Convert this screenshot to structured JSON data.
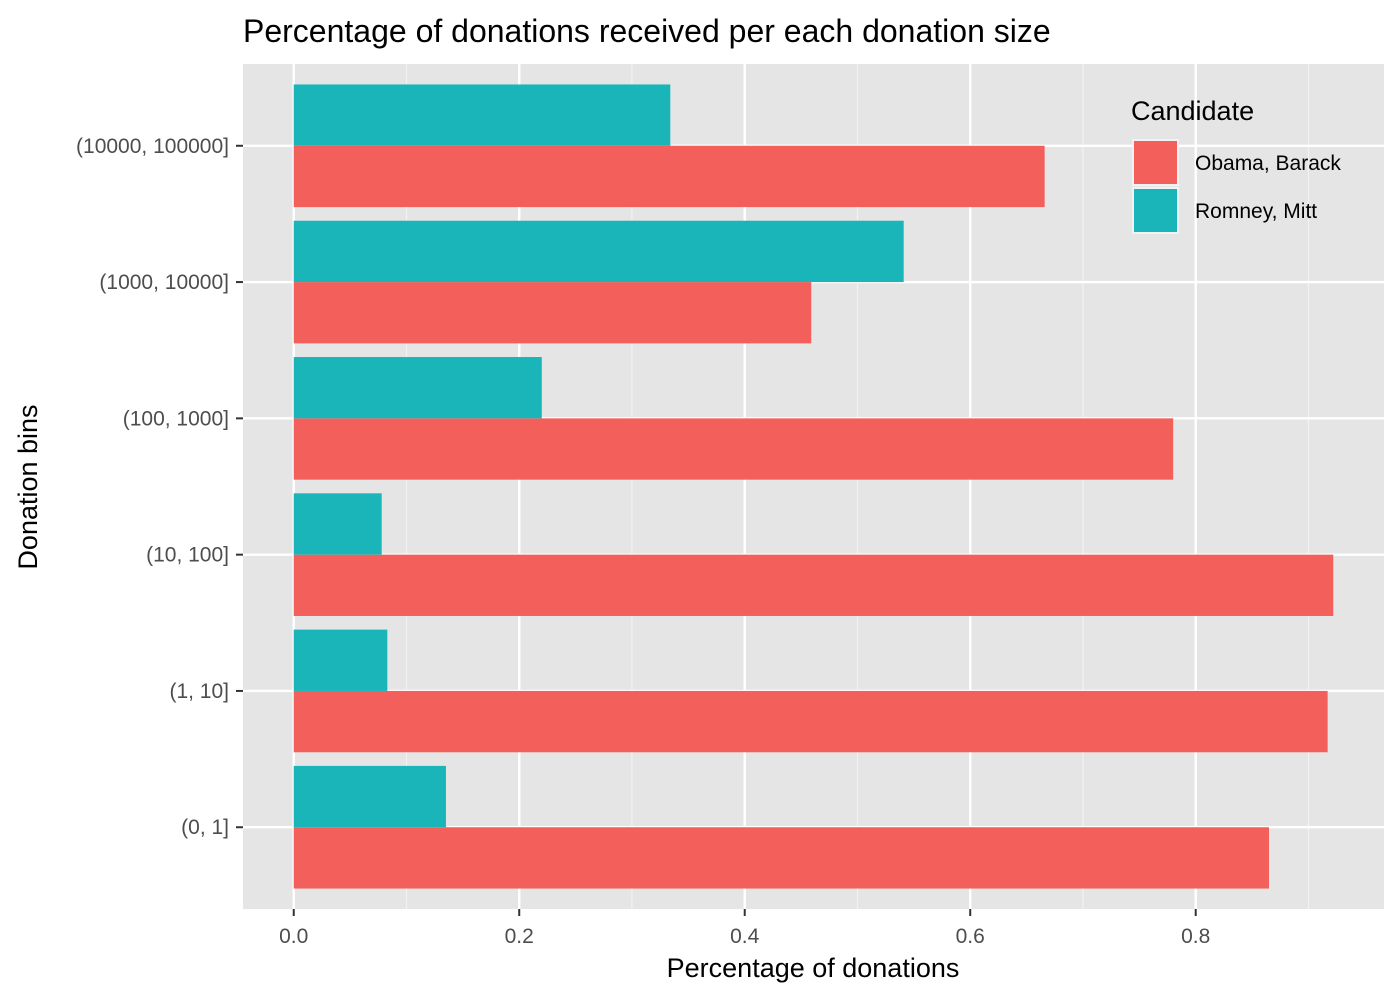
{
  "chart_data": {
    "type": "bar",
    "orientation": "horizontal",
    "title": "Percentage of donations received per each donation size",
    "xlabel": "Percentage of donations",
    "ylabel": "Donation bins",
    "categories": [
      "(0, 1]",
      "(1, 10]",
      "(10, 100]",
      "(100, 1000]",
      "(1000, 10000]",
      "(10000, 100000]"
    ],
    "series": [
      {
        "name": "Obama, Barack",
        "color": "#F3605C",
        "values": [
          0.865,
          0.917,
          0.922,
          0.78,
          0.459,
          0.666
        ]
      },
      {
        "name": "Romney, Mitt",
        "color": "#1AB5B8",
        "values": [
          0.135,
          0.083,
          0.078,
          0.22,
          0.541,
          0.334
        ]
      }
    ],
    "xlim": [
      -0.045,
      0.967
    ],
    "xticks": [
      0.0,
      0.2,
      0.4,
      0.6,
      0.8
    ],
    "xtick_labels": [
      "0.0",
      "0.2",
      "0.4",
      "0.6",
      "0.8"
    ],
    "grid": true,
    "legend": {
      "title": "Candidate",
      "placement": "top-right"
    }
  }
}
